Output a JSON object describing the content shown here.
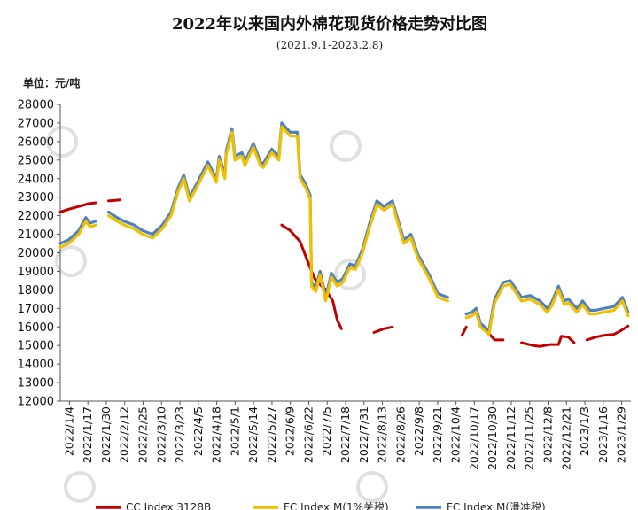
{
  "chart_data": {
    "type": "line",
    "title": "2022年以来国内外棉花现货价格走势对比图",
    "subtitle": "(2021.9.1-2023.2.8)",
    "ylabel": "单位：元/吨",
    "ylim": [
      12000,
      28000
    ],
    "yticks": [
      12000,
      13000,
      14000,
      15000,
      16000,
      17000,
      18000,
      19000,
      20000,
      21000,
      22000,
      23000,
      24000,
      25000,
      26000,
      27000,
      28000
    ],
    "x_range": [
      "2022-01-04",
      "2023-02-10"
    ],
    "xticks": [
      "2022/1/4",
      "2022/1/17",
      "2022/1/30",
      "2022/2/12",
      "2022/2/25",
      "2022/3/10",
      "2022/3/23",
      "2022/4/5",
      "2022/4/18",
      "2022/5/1",
      "2022/5/14",
      "2022/5/27",
      "2022/6/9",
      "2022/6/22",
      "2022/7/5",
      "2022/7/18",
      "2022/7/31",
      "2022/8/13",
      "2022/8/26",
      "2022/9/8",
      "2022/9/21",
      "2022/10/4",
      "2022/10/17",
      "2022/10/30",
      "2022/11/12",
      "2022/11/25",
      "2022/12/8",
      "2022/12/21",
      "2023/1/3",
      "2023/1/16",
      "2023/1/29"
    ],
    "grid": false,
    "legend_position": "bottom",
    "series": [
      {
        "name": "CC Index 3128B",
        "color": "#c00000",
        "points": [
          [
            "2022-01-04",
            22200
          ],
          [
            "2022-01-10",
            22350
          ],
          [
            "2022-01-17",
            22500
          ],
          [
            "2022-01-24",
            22650
          ],
          [
            "2022-01-29",
            22700
          ],
          [
            "2022-02-07",
            22800
          ],
          [
            "2022-02-15",
            22850
          ],
          [
            "2022-02-25",
            22750
          ],
          [
            "2022-03-10",
            22650
          ],
          [
            "2022-03-23",
            22700
          ],
          [
            "2022-04-05",
            22600
          ],
          [
            "2022-04-18",
            22550
          ],
          [
            "2022-05-01",
            22450
          ],
          [
            "2022-05-14",
            22350
          ],
          [
            "2022-05-27",
            22000
          ],
          [
            "2022-06-09",
            21500
          ],
          [
            "2022-06-15",
            21200
          ],
          [
            "2022-06-22",
            20600
          ],
          [
            "2022-06-26",
            19800
          ],
          [
            "2022-06-30",
            19000
          ],
          [
            "2022-07-03",
            18500
          ],
          [
            "2022-07-10",
            18000
          ],
          [
            "2022-07-15",
            17400
          ],
          [
            "2022-07-18",
            16400
          ],
          [
            "2022-07-21",
            15900
          ],
          [
            "2022-07-31",
            15800
          ],
          [
            "2022-08-13",
            15700
          ],
          [
            "2022-08-20",
            15900
          ],
          [
            "2022-08-26",
            16000
          ],
          [
            "2022-09-08",
            15900
          ],
          [
            "2022-09-21",
            15750
          ],
          [
            "2022-10-04",
            15550
          ],
          [
            "2022-10-14",
            15550
          ],
          [
            "2022-10-17",
            16000
          ],
          [
            "2022-10-30",
            15900
          ],
          [
            "2022-11-06",
            15300
          ],
          [
            "2022-11-12",
            15300
          ],
          [
            "2022-11-25",
            15150
          ],
          [
            "2022-12-03",
            15000
          ],
          [
            "2022-12-08",
            14950
          ],
          [
            "2022-12-15",
            15050
          ],
          [
            "2022-12-21",
            15050
          ],
          [
            "2022-12-23",
            15500
          ],
          [
            "2022-12-28",
            15450
          ],
          [
            "2023-01-01",
            15150
          ],
          [
            "2023-01-10",
            15300
          ],
          [
            "2023-01-16",
            15450
          ],
          [
            "2023-01-22",
            15550
          ],
          [
            "2023-01-29",
            15600
          ],
          [
            "2023-02-03",
            15800
          ],
          [
            "2023-02-08",
            16050
          ]
        ]
      },
      {
        "name": "FC Index M(1%关税)",
        "color": "#f0c000",
        "points": [
          [
            "2022-01-04",
            20300
          ],
          [
            "2022-01-10",
            20500
          ],
          [
            "2022-01-17",
            21000
          ],
          [
            "2022-01-22",
            21700
          ],
          [
            "2022-01-25",
            21400
          ],
          [
            "2022-01-29",
            21500
          ],
          [
            "2022-02-07",
            22000
          ],
          [
            "2022-02-13",
            21700
          ],
          [
            "2022-02-18",
            21500
          ],
          [
            "2022-02-25",
            21300
          ],
          [
            "2022-03-03",
            21000
          ],
          [
            "2022-03-10",
            20800
          ],
          [
            "2022-03-17",
            21300
          ],
          [
            "2022-03-23",
            22000
          ],
          [
            "2022-03-28",
            23300
          ],
          [
            "2022-04-01",
            24000
          ],
          [
            "2022-04-05",
            22800
          ],
          [
            "2022-04-10",
            23500
          ],
          [
            "2022-04-18",
            24700
          ],
          [
            "2022-04-24",
            23800
          ],
          [
            "2022-04-26",
            25000
          ],
          [
            "2022-04-30",
            24000
          ],
          [
            "2022-05-01",
            25300
          ],
          [
            "2022-05-05",
            26500
          ],
          [
            "2022-05-07",
            25000
          ],
          [
            "2022-05-12",
            25200
          ],
          [
            "2022-05-14",
            24700
          ],
          [
            "2022-05-20",
            25700
          ],
          [
            "2022-05-25",
            24700
          ],
          [
            "2022-05-27",
            24600
          ],
          [
            "2022-06-02",
            25400
          ],
          [
            "2022-06-07",
            25000
          ],
          [
            "2022-06-09",
            26800
          ],
          [
            "2022-06-15",
            26300
          ],
          [
            "2022-06-20",
            26300
          ],
          [
            "2022-06-22",
            24000
          ],
          [
            "2022-06-26",
            23500
          ],
          [
            "2022-06-29",
            22900
          ],
          [
            "2022-06-30",
            18200
          ],
          [
            "2022-07-03",
            17900
          ],
          [
            "2022-07-06",
            18800
          ],
          [
            "2022-07-10",
            17400
          ],
          [
            "2022-07-14",
            18700
          ],
          [
            "2022-07-18",
            18200
          ],
          [
            "2022-07-22",
            18400
          ],
          [
            "2022-07-27",
            19200
          ],
          [
            "2022-07-31",
            19100
          ],
          [
            "2022-08-05",
            20000
          ],
          [
            "2022-08-10",
            21400
          ],
          [
            "2022-08-15",
            22600
          ],
          [
            "2022-08-20",
            22300
          ],
          [
            "2022-08-26",
            22600
          ],
          [
            "2022-09-03",
            20500
          ],
          [
            "2022-09-08",
            20800
          ],
          [
            "2022-09-13",
            19700
          ],
          [
            "2022-09-21",
            18600
          ],
          [
            "2022-09-27",
            17600
          ],
          [
            "2022-10-04",
            17400
          ],
          [
            "2022-10-17",
            16500
          ],
          [
            "2022-10-21",
            16600
          ],
          [
            "2022-10-24",
            16800
          ],
          [
            "2022-10-27",
            16000
          ],
          [
            "2022-10-30",
            15800
          ],
          [
            "2022-11-02",
            15600
          ],
          [
            "2022-11-06",
            17300
          ],
          [
            "2022-11-12",
            18200
          ],
          [
            "2022-11-17",
            18300
          ],
          [
            "2022-11-25",
            17400
          ],
          [
            "2022-12-01",
            17500
          ],
          [
            "2022-12-08",
            17200
          ],
          [
            "2022-12-13",
            16800
          ],
          [
            "2022-12-16",
            17100
          ],
          [
            "2022-12-21",
            18000
          ],
          [
            "2022-12-25",
            17200
          ],
          [
            "2022-12-28",
            17300
          ],
          [
            "2023-01-03",
            16800
          ],
          [
            "2023-01-07",
            17200
          ],
          [
            "2023-01-12",
            16700
          ],
          [
            "2023-01-16",
            16700
          ],
          [
            "2023-01-22",
            16800
          ],
          [
            "2023-01-29",
            16900
          ],
          [
            "2023-02-04",
            17400
          ],
          [
            "2023-02-08",
            16600
          ]
        ]
      },
      {
        "name": "FC Index M(滑准税)",
        "color": "#4f81bd",
        "points": [
          [
            "2022-01-04",
            20500
          ],
          [
            "2022-01-10",
            20700
          ],
          [
            "2022-01-17",
            21200
          ],
          [
            "2022-01-22",
            21900
          ],
          [
            "2022-01-25",
            21600
          ],
          [
            "2022-01-29",
            21700
          ],
          [
            "2022-02-07",
            22200
          ],
          [
            "2022-02-13",
            21900
          ],
          [
            "2022-02-18",
            21700
          ],
          [
            "2022-02-25",
            21500
          ],
          [
            "2022-03-03",
            21200
          ],
          [
            "2022-03-10",
            21000
          ],
          [
            "2022-03-17",
            21500
          ],
          [
            "2022-03-23",
            22200
          ],
          [
            "2022-03-28",
            23500
          ],
          [
            "2022-04-01",
            24200
          ],
          [
            "2022-04-05",
            23000
          ],
          [
            "2022-04-10",
            23700
          ],
          [
            "2022-04-18",
            24900
          ],
          [
            "2022-04-24",
            24000
          ],
          [
            "2022-04-26",
            25200
          ],
          [
            "2022-04-30",
            24200
          ],
          [
            "2022-05-01",
            25500
          ],
          [
            "2022-05-05",
            26700
          ],
          [
            "2022-05-07",
            25200
          ],
          [
            "2022-05-12",
            25400
          ],
          [
            "2022-05-14",
            24900
          ],
          [
            "2022-05-20",
            25900
          ],
          [
            "2022-05-25",
            24900
          ],
          [
            "2022-05-27",
            24800
          ],
          [
            "2022-06-02",
            25600
          ],
          [
            "2022-06-07",
            25200
          ],
          [
            "2022-06-09",
            27000
          ],
          [
            "2022-06-15",
            26500
          ],
          [
            "2022-06-20",
            26500
          ],
          [
            "2022-06-22",
            24200
          ],
          [
            "2022-06-26",
            23700
          ],
          [
            "2022-06-29",
            23100
          ],
          [
            "2022-06-30",
            18400
          ],
          [
            "2022-07-03",
            18100
          ],
          [
            "2022-07-06",
            19000
          ],
          [
            "2022-07-10",
            17600
          ],
          [
            "2022-07-14",
            18900
          ],
          [
            "2022-07-18",
            18400
          ],
          [
            "2022-07-22",
            18600
          ],
          [
            "2022-07-27",
            19400
          ],
          [
            "2022-07-31",
            19300
          ],
          [
            "2022-08-05",
            20200
          ],
          [
            "2022-08-10",
            21600
          ],
          [
            "2022-08-15",
            22800
          ],
          [
            "2022-08-20",
            22500
          ],
          [
            "2022-08-26",
            22800
          ],
          [
            "2022-09-03",
            20700
          ],
          [
            "2022-09-08",
            21000
          ],
          [
            "2022-09-13",
            19900
          ],
          [
            "2022-09-21",
            18800
          ],
          [
            "2022-09-27",
            17800
          ],
          [
            "2022-10-04",
            17600
          ],
          [
            "2022-10-17",
            16700
          ],
          [
            "2022-10-21",
            16800
          ],
          [
            "2022-10-24",
            17000
          ],
          [
            "2022-10-27",
            16200
          ],
          [
            "2022-10-30",
            16000
          ],
          [
            "2022-11-02",
            15800
          ],
          [
            "2022-11-06",
            17500
          ],
          [
            "2022-11-12",
            18400
          ],
          [
            "2022-11-17",
            18500
          ],
          [
            "2022-11-25",
            17600
          ],
          [
            "2022-12-01",
            17700
          ],
          [
            "2022-12-08",
            17400
          ],
          [
            "2022-12-13",
            17000
          ],
          [
            "2022-12-16",
            17300
          ],
          [
            "2022-12-21",
            18200
          ],
          [
            "2022-12-25",
            17400
          ],
          [
            "2022-12-28",
            17500
          ],
          [
            "2023-01-03",
            17000
          ],
          [
            "2023-01-07",
            17400
          ],
          [
            "2023-01-12",
            16900
          ],
          [
            "2023-01-16",
            16900
          ],
          [
            "2023-01-22",
            17000
          ],
          [
            "2023-01-29",
            17100
          ],
          [
            "2023-02-04",
            17600
          ],
          [
            "2023-02-08",
            16800
          ]
        ]
      }
    ]
  }
}
